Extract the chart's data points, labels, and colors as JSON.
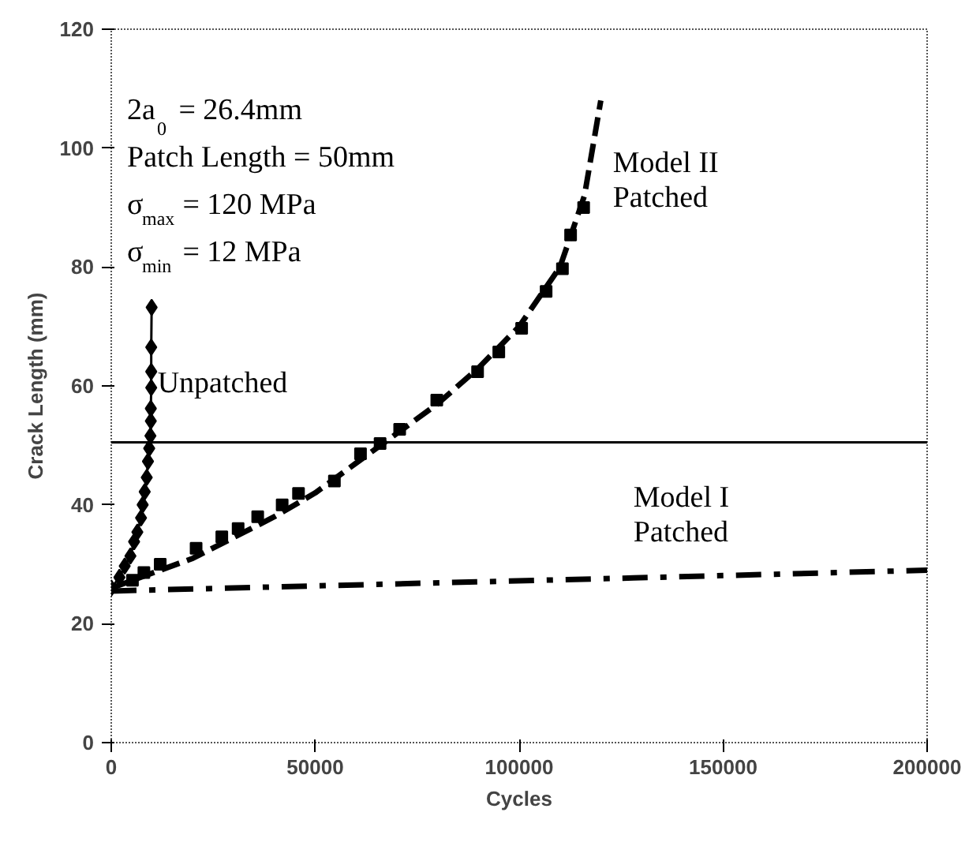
{
  "chart_data": {
    "type": "line",
    "xlabel": "Cycles",
    "ylabel": "Crack Length (mm)",
    "xlim": [
      0,
      200000
    ],
    "ylim": [
      0,
      120
    ],
    "xticks": [
      0,
      50000,
      100000,
      150000,
      200000
    ],
    "yticks": [
      0,
      20,
      40,
      60,
      80,
      100,
      120
    ],
    "grid": false,
    "legend": false,
    "series": [
      {
        "name": "Unpatched",
        "color": "#000000",
        "marker": "diamond",
        "line_style": "solid",
        "x": [
          0,
          2000,
          3300,
          4700,
          5600,
          6400,
          7300,
          7700,
          8200,
          8700,
          9000,
          9300,
          9600,
          9700,
          9700,
          9800,
          9800,
          9800,
          9900
        ],
        "values": [
          26.0,
          27.8,
          29.7,
          31.4,
          33.8,
          35.4,
          37.8,
          40.0,
          42.2,
          44.6,
          47.3,
          49.5,
          51.6,
          54.1,
          56.2,
          59.7,
          62.4,
          66.5,
          73.2
        ]
      },
      {
        "type": "scatter",
        "color": "#000000",
        "marker": "square",
        "x": [
          5200,
          8000,
          12000,
          20800,
          27100,
          31100,
          35900,
          41900,
          45900,
          54700,
          61100,
          65900,
          70700,
          79800,
          89800,
          95000,
          100600,
          106600,
          110600,
          112600,
          115800
        ],
        "values": [
          27.3,
          28.6,
          30.0,
          32.7,
          34.6,
          36.0,
          38.0,
          40.0,
          41.9,
          44.0,
          48.6,
          50.3,
          52.7,
          57.6,
          62.4,
          65.7,
          69.7,
          75.9,
          79.7,
          85.4,
          90.0
        ]
      },
      {
        "name": "Model II\nPatched",
        "color": "#000000",
        "marker": "none",
        "line_style": "dashed",
        "x": [
          0,
          10000,
          20000,
          30000,
          40000,
          50000,
          60000,
          70000,
          80000,
          90000,
          100000,
          110000,
          116000,
          120000
        ],
        "values": [
          26.0,
          28.5,
          31.0,
          34.5,
          38.0,
          42.0,
          47.0,
          52.0,
          57.0,
          63.0,
          70.0,
          80.0,
          92.0,
          108.0
        ]
      },
      {
        "name": "Model I\nPatched",
        "color": "#000000",
        "marker": "none",
        "line_style": "dashdot",
        "x": [
          0,
          128000,
          200000
        ],
        "values": [
          25.5,
          27.7,
          29.0
        ]
      }
    ],
    "ref_lines": [
      {
        "axis": "y",
        "value": 50.5,
        "color": "#000000",
        "line_style": "solid"
      }
    ],
    "annotations": [
      "2a$_{0}$ = 26.4mm",
      "Patch Length = 50mm",
      "σ$_{max}$ = 120 MPa",
      "σ$_{min}$ = 12 MPa"
    ]
  }
}
